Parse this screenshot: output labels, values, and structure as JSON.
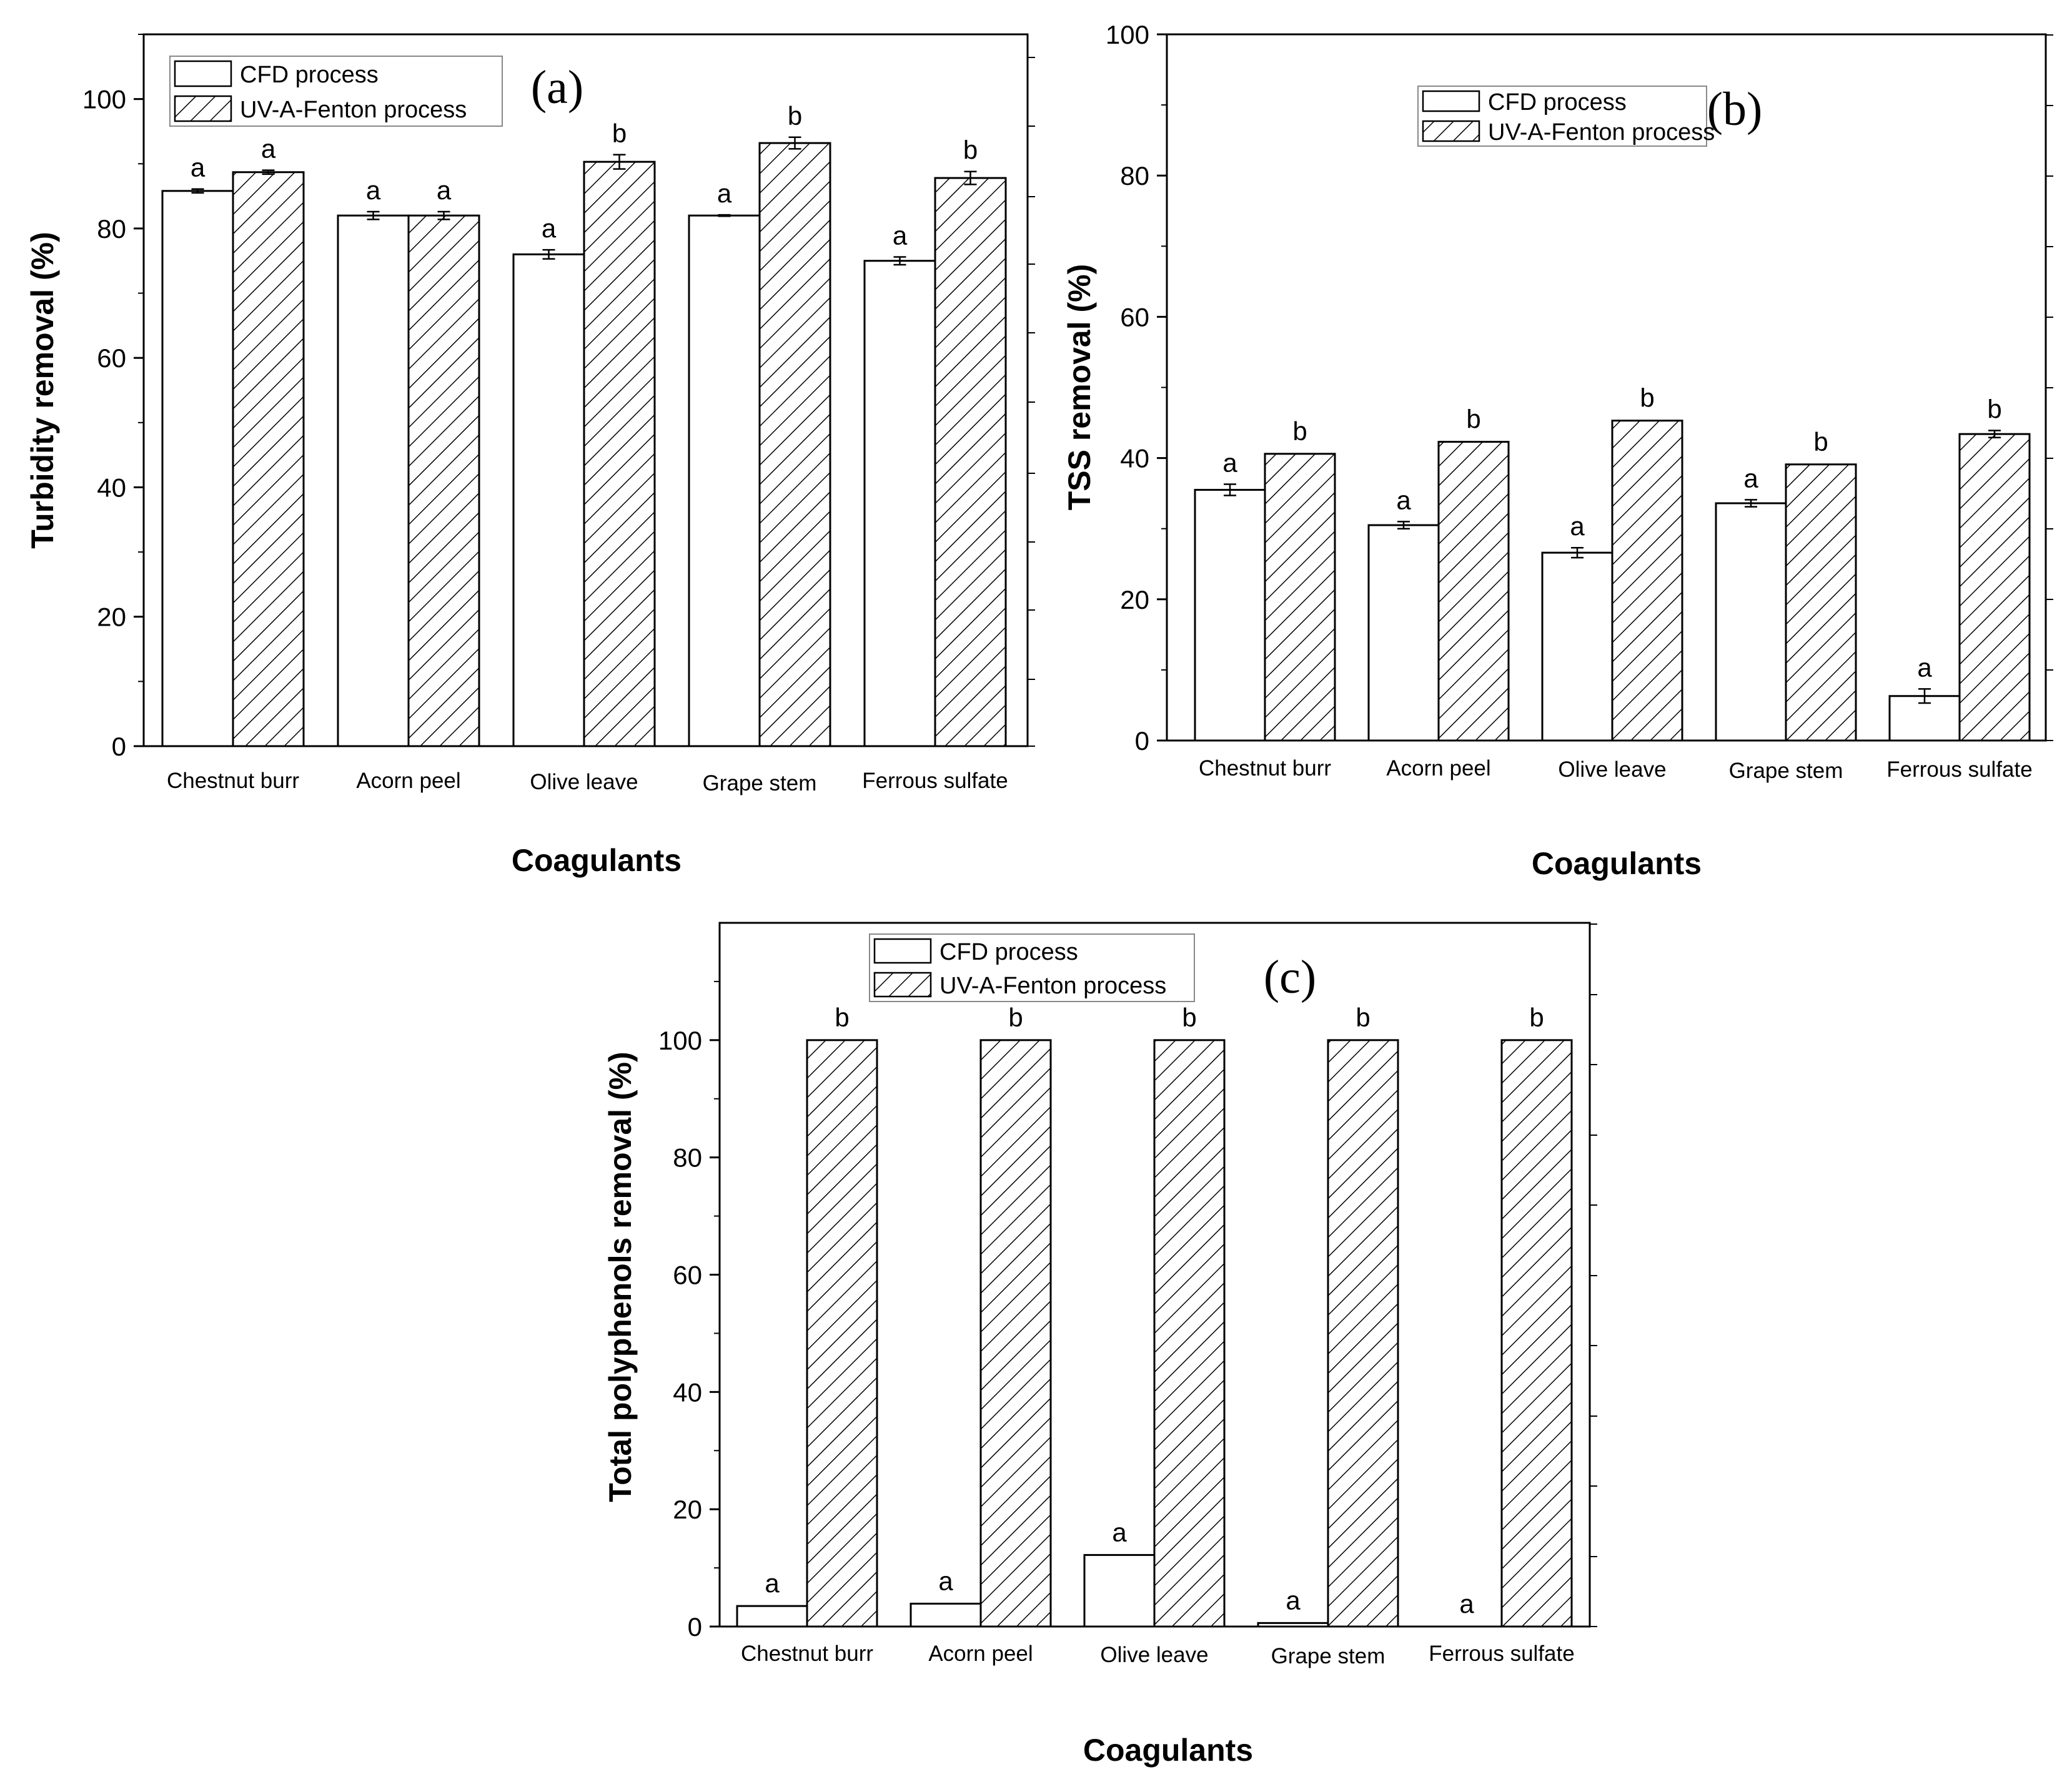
{
  "figure": {
    "colors": {
      "ink": "#000000",
      "background": "#ffffff",
      "bar_fill": "#ffffff",
      "hatch": "#000000"
    },
    "legend": [
      "CFD process",
      "UV-A-Fenton process"
    ]
  },
  "chart_data": [
    {
      "type": "bar",
      "panel_label": "(a)",
      "title": "",
      "xlabel": "Coagulants",
      "ylabel": "Turbidity removal (%)",
      "ylim": [
        0,
        110
      ],
      "yticks": [
        0,
        20,
        40,
        60,
        80,
        100
      ],
      "grid": false,
      "legend_position": "top-left",
      "categories": [
        "Chestnut burr",
        "Acorn peel",
        "Olive leave",
        "Grape stem",
        "Ferrous sulfate"
      ],
      "series": [
        {
          "name": "CFD process",
          "pattern": "plain",
          "values": [
            85.8,
            82.0,
            76.0,
            82.0,
            75.0
          ],
          "errors": [
            0.3,
            0.6,
            0.7,
            0.1,
            0.6
          ],
          "letters": [
            "a",
            "a",
            "a",
            "a",
            "a"
          ]
        },
        {
          "name": "UV-A-Fenton process",
          "pattern": "hatched",
          "values": [
            88.7,
            82.0,
            90.3,
            93.2,
            87.8
          ],
          "errors": [
            0.3,
            0.6,
            1.1,
            0.9,
            1.0
          ],
          "letters": [
            "a",
            "a",
            "b",
            "b",
            "b"
          ]
        }
      ]
    },
    {
      "type": "bar",
      "panel_label": "(b)",
      "title": "",
      "xlabel": "Coagulants",
      "ylabel": "TSS removal (%)",
      "ylim": [
        0,
        100
      ],
      "yticks": [
        0,
        20,
        40,
        60,
        80,
        100
      ],
      "grid": false,
      "legend_position": "top-center",
      "categories": [
        "Chestnut burr",
        "Acorn peel",
        "Olive leave",
        "Grape stem",
        "Ferrous sulfate"
      ],
      "series": [
        {
          "name": "CFD process",
          "pattern": "plain",
          "values": [
            35.5,
            30.5,
            26.6,
            33.6,
            6.3
          ],
          "errors": [
            0.8,
            0.5,
            0.7,
            0.5,
            1.0
          ],
          "letters": [
            "a",
            "a",
            "a",
            "a",
            "a"
          ]
        },
        {
          "name": "UV-A-Fenton process",
          "pattern": "hatched",
          "values": [
            40.6,
            42.3,
            45.3,
            39.1,
            43.4
          ],
          "errors": [
            0,
            0,
            0,
            0,
            0.5
          ],
          "letters": [
            "b",
            "b",
            "b",
            "b",
            "b"
          ]
        }
      ]
    },
    {
      "type": "bar",
      "panel_label": "(c)",
      "title": "",
      "xlabel": "Coagulants",
      "ylabel": "Total polyphenols removal (%)",
      "ylim": [
        0,
        120
      ],
      "yticks": [
        0,
        20,
        40,
        60,
        80,
        100
      ],
      "grid": false,
      "legend_position": "top-center",
      "categories": [
        "Chestnut burr",
        "Acorn peel",
        "Olive leave",
        "Grape stem",
        "Ferrous sulfate"
      ],
      "series": [
        {
          "name": "CFD process",
          "pattern": "plain",
          "values": [
            3.5,
            3.9,
            12.2,
            0.6,
            0.0
          ],
          "errors": [
            0,
            0,
            0,
            0,
            0
          ],
          "letters": [
            "a",
            "a",
            "a",
            "a",
            "a"
          ]
        },
        {
          "name": "UV-A-Fenton process",
          "pattern": "hatched",
          "values": [
            100,
            100,
            100,
            100,
            100
          ],
          "errors": [
            0,
            0,
            0,
            0,
            0
          ],
          "letters": [
            "b",
            "b",
            "b",
            "b",
            "b"
          ]
        }
      ]
    }
  ]
}
